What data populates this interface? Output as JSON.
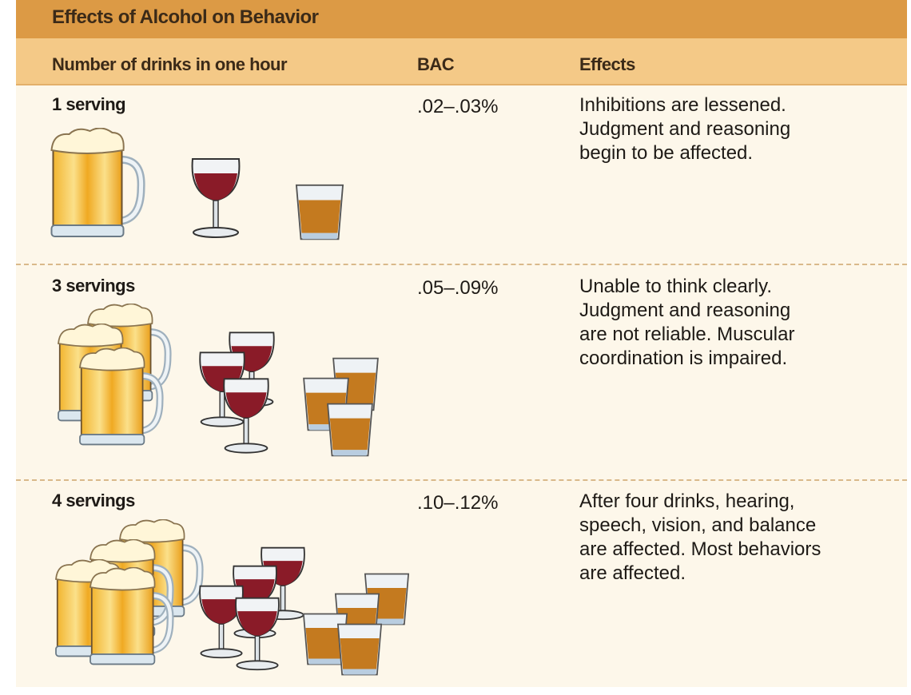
{
  "header": {
    "title": "Effects of Alcohol on Behavior"
  },
  "table": {
    "columns": [
      "Number of drinks in one hour",
      "BAC",
      "Effects"
    ],
    "rows": [
      {
        "servings": "1 serving",
        "bac": ".02–.03%",
        "effects": [
          "Inhibitions are lessened.",
          "Judgment and reasoning",
          "begin to be affected."
        ]
      },
      {
        "servings": "3 servings",
        "bac": ".05–.09%",
        "effects": [
          "Unable to think clearly.",
          "Judgment and reasoning",
          "are not reliable.  Muscular",
          "coordination is impaired."
        ]
      },
      {
        "servings": "4 servings",
        "bac": ".10–.12%",
        "effects": [
          "After four drinks, hearing,",
          "speech, vision, and balance",
          "are affected. Most behaviors",
          "are affected."
        ]
      }
    ]
  }
}
